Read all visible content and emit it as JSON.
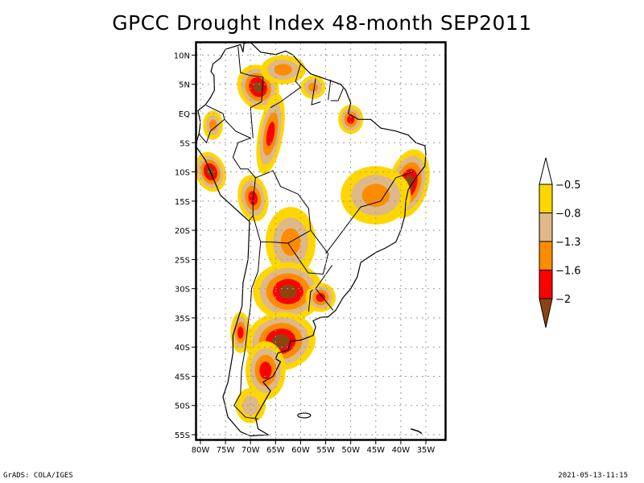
{
  "title": "GPCC Drought Index 48-month SEP2011",
  "footer": {
    "left": "GrADS: COLA/IGES",
    "right": "2021-05-13-11:15"
  },
  "chart_data": {
    "type": "heatmap",
    "title": "GPCC Drought Index 48-month SEP2011",
    "region": "South America",
    "xlabel": "",
    "ylabel": "",
    "lon_range": [
      -81,
      -31
    ],
    "lat_range": [
      -56,
      11
    ],
    "x_ticks": [
      "80W",
      "75W",
      "70W",
      "65W",
      "60W",
      "55W",
      "50W",
      "45W",
      "40W",
      "35W"
    ],
    "x_tick_values": [
      -80,
      -75,
      -70,
      -65,
      -60,
      -55,
      -50,
      -45,
      -40,
      -35
    ],
    "y_ticks": [
      "10N",
      "5N",
      "EQ",
      "5S",
      "10S",
      "15S",
      "20S",
      "25S",
      "30S",
      "35S",
      "40S",
      "45S",
      "50S",
      "55S"
    ],
    "y_tick_values": [
      10,
      5,
      0,
      -5,
      -10,
      -15,
      -20,
      -25,
      -30,
      -35,
      -40,
      -45,
      -50,
      -55
    ],
    "grid": true,
    "legend": {
      "placement": "right",
      "labels": [
        "-0.5",
        "-0.8",
        "-1.3",
        "-1.6",
        "-2"
      ],
      "bins": [
        {
          "range": "> -0.5",
          "color": "#ffffff"
        },
        {
          "range": "-0.8 to -0.5",
          "color": "#ffd700"
        },
        {
          "range": "-1.3 to -0.8",
          "color": "#deb887"
        },
        {
          "range": "-1.6 to -1.3",
          "color": "#ff8c00"
        },
        {
          "range": "-2 to -1.6",
          "color": "#ff0000"
        },
        {
          "range": "< -2",
          "color": "#8b4513"
        }
      ]
    },
    "regions": [
      {
        "name": "NW Venezuela / Colombia east",
        "lon": -68.5,
        "lat": 4.5,
        "level": -2.0
      },
      {
        "name": "Venezuela north",
        "lon": -63.5,
        "lat": 7.5,
        "level": -1.3
      },
      {
        "name": "Guyana",
        "lon": -57.5,
        "lat": 4.5,
        "level": -1.3
      },
      {
        "name": "Amazon delta",
        "lon": -50.0,
        "lat": -1.0,
        "level": -1.6
      },
      {
        "name": "Ecuador/Peru coast",
        "lon": -77.5,
        "lat": -2.0,
        "level": -1.3
      },
      {
        "name": "Western Amazon",
        "lon": -66.0,
        "lat": -3.5,
        "level": -1.6
      },
      {
        "name": "Peru central coast",
        "lon": -78.0,
        "lat": -10.0,
        "level": -2.0
      },
      {
        "name": "Lake Titicaca",
        "lon": -69.5,
        "lat": -14.5,
        "level": -1.6
      },
      {
        "name": "Bahia coast",
        "lon": -38.5,
        "lat": -12.0,
        "level": -2.0
      },
      {
        "name": "Central Brazil",
        "lon": -45.0,
        "lat": -14.0,
        "level": -1.3
      },
      {
        "name": "Gran Chaco",
        "lon": -62.0,
        "lat": -22.0,
        "level": -1.3
      },
      {
        "name": "Cordoba",
        "lon": -62.5,
        "lat": -30.5,
        "level": -2.0
      },
      {
        "name": "Uruguay",
        "lon": -56.0,
        "lat": -31.5,
        "level": -1.6
      },
      {
        "name": "Central Chile",
        "lon": -72.0,
        "lat": -37.5,
        "level": -1.6
      },
      {
        "name": "La Pampa / Buenos Aires",
        "lon": -64.0,
        "lat": -39.0,
        "level": -2.0
      },
      {
        "name": "Northern Patagonia",
        "lon": -67.0,
        "lat": -44.0,
        "level": -1.6
      },
      {
        "name": "Southern Patagonia",
        "lon": -70.0,
        "lat": -50.0,
        "level": -0.8
      }
    ]
  }
}
